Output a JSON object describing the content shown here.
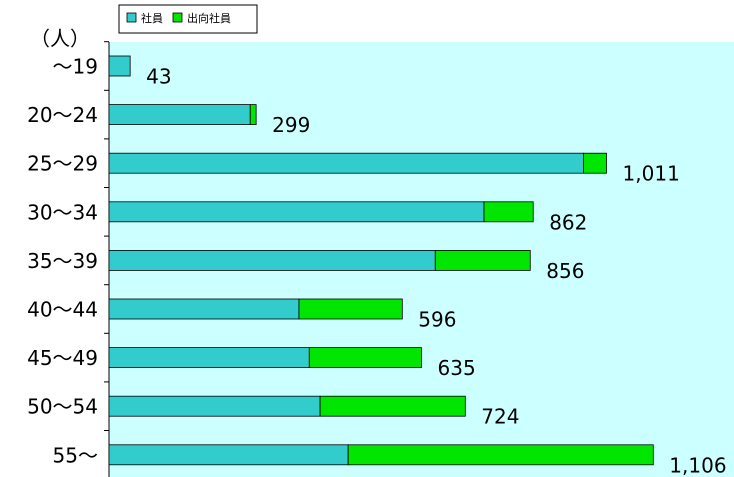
{
  "chart_data": {
    "type": "stacked-barh",
    "unit_label": "（人）",
    "categories": [
      "～19",
      "20～24",
      "25～29",
      "30～34",
      "35～39",
      "40～44",
      "45～49",
      "50～54",
      "55～"
    ],
    "series": [
      {
        "name": "社員",
        "color": "#33cccc",
        "values": [
          43,
          287,
          964,
          762,
          663,
          386,
          407,
          429,
          486
        ]
      },
      {
        "name": "出向社員",
        "color": "#00e600",
        "values": [
          0,
          12,
          47,
          100,
          193,
          210,
          228,
          295,
          620
        ]
      }
    ],
    "totals": [
      43,
      299,
      1011,
      862,
      856,
      596,
      635,
      724,
      1106
    ],
    "total_labels": [
      "43",
      "299",
      "1,011",
      "862",
      "856",
      "596",
      "635",
      "724",
      "1,106"
    ],
    "xlim": [
      0,
      1270
    ],
    "background": "#ccffff"
  }
}
